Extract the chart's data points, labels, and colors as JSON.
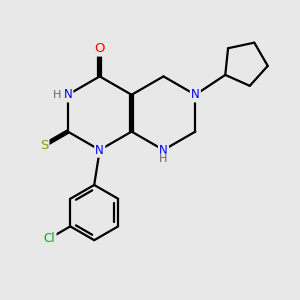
{
  "bg_color": "#e8e8e8",
  "atom_colors": {
    "N": "#0000ff",
    "O": "#ff0000",
    "S": "#999900",
    "C": "#000000",
    "Cl": "#00aa00",
    "H": "#666666"
  },
  "font_size": 8.5,
  "line_width": 1.6,
  "fig_size": [
    3.0,
    3.0
  ],
  "dpi": 100
}
